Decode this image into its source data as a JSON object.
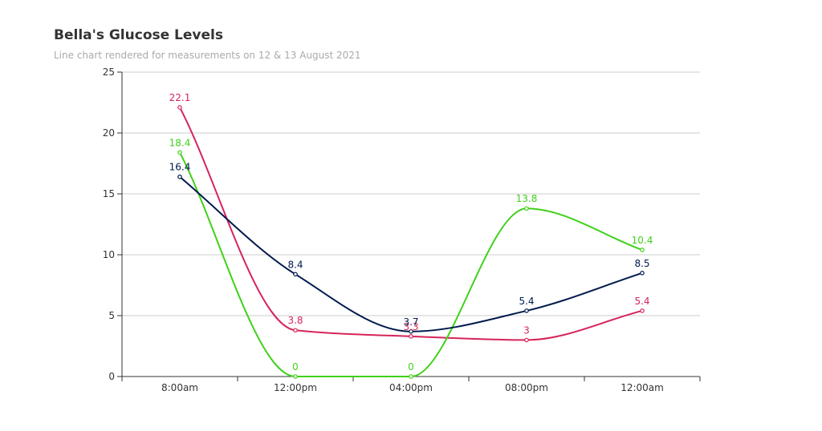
{
  "chart_data": {
    "type": "line",
    "title": "Bella's Glucose Levels",
    "subtitle": "Line chart rendered for measurements on 12 & 13 August 2021",
    "categories": [
      "8:00am",
      "12:00pm",
      "04:00pm",
      "08:00pm",
      "12:00am"
    ],
    "ylim": [
      0,
      25
    ],
    "yticks": [
      0,
      5,
      10,
      15,
      20,
      25
    ],
    "grid": true,
    "series": [
      {
        "values": [
          22.1,
          3.8,
          3.3,
          3,
          5.4
        ],
        "color": "#d6245a"
      },
      {
        "values": [
          18.4,
          0,
          0,
          13.8,
          10.4
        ],
        "color": "#3fd11a"
      },
      {
        "values": [
          16.4,
          8.4,
          3.7,
          5.4,
          8.5
        ],
        "color": "#001a4d"
      }
    ]
  }
}
